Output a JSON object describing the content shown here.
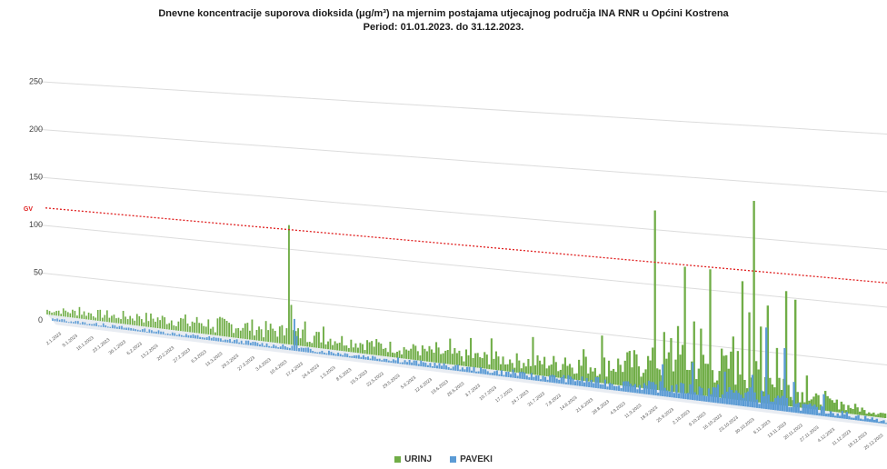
{
  "title": {
    "line1": "Dnevne koncentracije suporova dioksida (μg/m³) na mjernim postajama utjecajnog područja INA RNR u Općini Kostrena",
    "line2": "Period: 01.01.2023. do 31.12.2023."
  },
  "chart_data": {
    "type": "bar",
    "projection": "3d-perspective",
    "year": 2023,
    "yticks": [
      "0",
      "50",
      "100",
      "150",
      "200",
      "250"
    ],
    "ylim": [
      0,
      250
    ],
    "limit_line": {
      "label": "GV",
      "value": 125,
      "color": "#e02020"
    },
    "xtick_labels": [
      "2.1.2023",
      "9.1.2023",
      "16.1.2023",
      "23.1.2023",
      "30.1.2023",
      "6.2.2023",
      "13.2.2023",
      "20.2.2023",
      "27.2.2023",
      "6.3.2023",
      "13.3.2023",
      "20.3.2023",
      "27.3.2023",
      "3.4.2023",
      "10.4.2023",
      "17.4.2023",
      "24.4.2023",
      "1.5.2023",
      "8.5.2023",
      "15.5.2023",
      "22.5.2023",
      "29.5.2023",
      "5.6.2023",
      "12.6.2023",
      "19.6.2023",
      "26.6.2023",
      "3.7.2023",
      "10.7.2023",
      "17.7.2023",
      "24.7.2023",
      "31.7.2023",
      "7.8.2023",
      "14.8.2023",
      "21.8.2023",
      "28.8.2023",
      "4.9.2023",
      "11.9.2023",
      "18.9.2023",
      "25.9.2023",
      "2.10.2023",
      "9.10.2023",
      "16.10.2023",
      "23.10.2023",
      "30.10.2023",
      "6.11.2023",
      "13.11.2023",
      "20.11.2023",
      "27.11.2023",
      "4.12.2023",
      "11.12.2023",
      "18.12.2023",
      "25.12.2023"
    ],
    "series": [
      {
        "name": "URINJ",
        "color": "#70ad47",
        "peaks": [
          [
            1,
            4
          ],
          [
            14,
            12
          ],
          [
            30,
            5
          ],
          [
            40,
            10
          ],
          [
            62,
            6
          ],
          [
            73,
            3
          ],
          [
            94,
            4
          ],
          [
            104,
            16
          ],
          [
            105,
            120
          ],
          [
            106,
            40
          ],
          [
            112,
            25
          ],
          [
            120,
            22
          ],
          [
            140,
            12
          ],
          [
            160,
            14
          ],
          [
            169,
            20
          ],
          [
            175,
            25
          ],
          [
            184,
            28
          ],
          [
            193,
            30
          ],
          [
            211,
            36
          ],
          [
            225,
            20
          ],
          [
            233,
            30
          ],
          [
            241,
            45
          ],
          [
            244,
            22
          ],
          [
            252,
            32
          ],
          [
            260,
            18
          ],
          [
            264,
            168
          ],
          [
            268,
            55
          ],
          [
            271,
            50
          ],
          [
            274,
            62
          ],
          [
            277,
            118
          ],
          [
            281,
            68
          ],
          [
            284,
            62
          ],
          [
            288,
            118
          ],
          [
            295,
            40
          ],
          [
            298,
            58
          ],
          [
            302,
            110
          ],
          [
            305,
            82
          ],
          [
            307,
            185
          ],
          [
            310,
            70
          ],
          [
            313,
            90
          ],
          [
            317,
            52
          ],
          [
            321,
            105
          ],
          [
            325,
            98
          ],
          [
            330,
            30
          ],
          [
            338,
            18
          ],
          [
            345,
            10
          ],
          [
            355,
            5
          ]
        ],
        "base": [
          [
            0,
            5
          ],
          [
            30,
            8
          ],
          [
            60,
            11
          ],
          [
            90,
            13
          ],
          [
            120,
            11
          ],
          [
            150,
            10
          ],
          [
            180,
            10
          ],
          [
            210,
            12
          ],
          [
            240,
            16
          ],
          [
            255,
            22
          ],
          [
            275,
            28
          ],
          [
            300,
            30
          ],
          [
            320,
            22
          ],
          [
            330,
            10
          ],
          [
            345,
            7
          ],
          [
            364,
            4
          ]
        ]
      },
      {
        "name": "PAVEKI",
        "color": "#5b9bd5",
        "peaks": [
          [
            4,
            3
          ],
          [
            22,
            4
          ],
          [
            43,
            3
          ],
          [
            105,
            32
          ],
          [
            106,
            15
          ],
          [
            150,
            6
          ],
          [
            200,
            8
          ],
          [
            250,
            10
          ],
          [
            265,
            30
          ],
          [
            278,
            35
          ],
          [
            292,
            30
          ],
          [
            304,
            30
          ],
          [
            310,
            75
          ],
          [
            318,
            58
          ],
          [
            322,
            28
          ],
          [
            335,
            20
          ]
        ],
        "base": [
          [
            0,
            2
          ],
          [
            100,
            3
          ],
          [
            200,
            4
          ],
          [
            260,
            8
          ],
          [
            300,
            12
          ],
          [
            330,
            6
          ],
          [
            364,
            2
          ]
        ]
      }
    ]
  }
}
